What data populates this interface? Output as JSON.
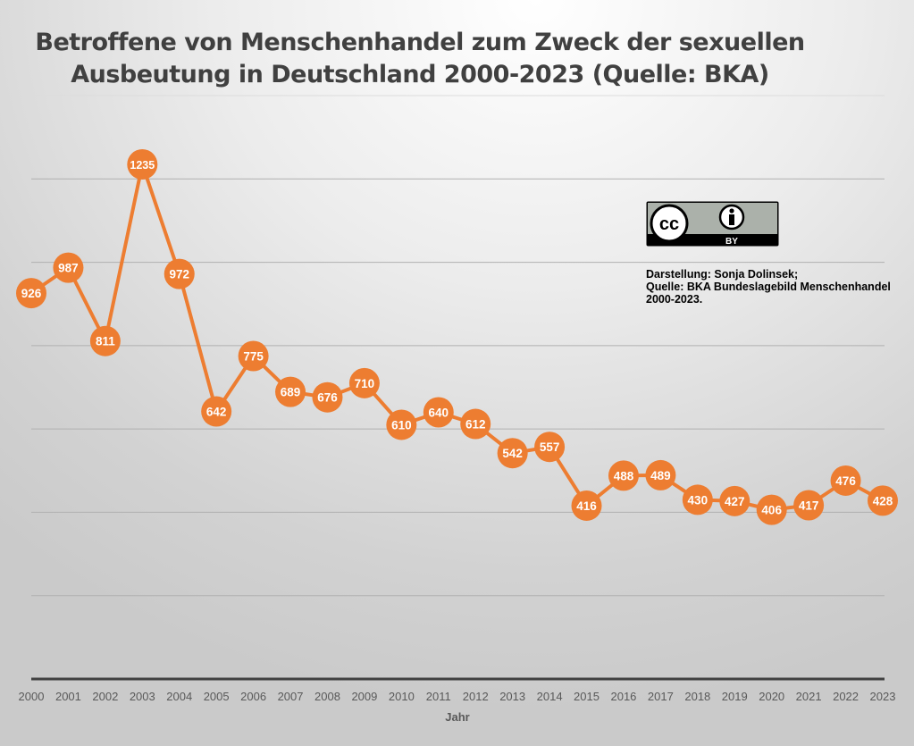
{
  "chart_data": {
    "type": "line",
    "title": "Betroffene von Menschenhandel zum Zweck der sexuellen Ausbeutung in Deutschland 2000-2023 (Quelle: BKA)",
    "title_lines": [
      "Betroffene von Menschenhandel zum Zweck der sexuellen",
      "Ausbeutung in Deutschland 2000-2023 (Quelle: BKA)"
    ],
    "xlabel": "Jahr",
    "ylabel": "",
    "categories": [
      "2000",
      "2001",
      "2002",
      "2003",
      "2004",
      "2005",
      "2006",
      "2007",
      "2008",
      "2009",
      "2010",
      "2011",
      "2012",
      "2013",
      "2014",
      "2015",
      "2016",
      "2017",
      "2018",
      "2019",
      "2020",
      "2021",
      "2022",
      "2023"
    ],
    "values": [
      926,
      987,
      811,
      1235,
      972,
      642,
      775,
      689,
      676,
      710,
      610,
      640,
      612,
      542,
      557,
      416,
      488,
      489,
      430,
      427,
      406,
      417,
      476,
      428
    ],
    "ylim": [
      0,
      1400
    ],
    "y_gridlines": [
      200,
      400,
      600,
      800,
      1000,
      1200,
      1400
    ],
    "grid": true,
    "y_tick_labels_shown": false,
    "data_labels": true,
    "legend": "none",
    "colors": {
      "line": "#ed7d31",
      "label_text": "#ffffff",
      "grid": "#b0b0b0",
      "axis": "#404040"
    }
  },
  "license": {
    "badge": "CC BY",
    "badge_text": "BY"
  },
  "credit": {
    "lines": [
      "Darstellung: Sonja Dolinsek;",
      "Quelle: BKA Bundeslagebild Menschenhandel",
      "2000-2023."
    ]
  }
}
